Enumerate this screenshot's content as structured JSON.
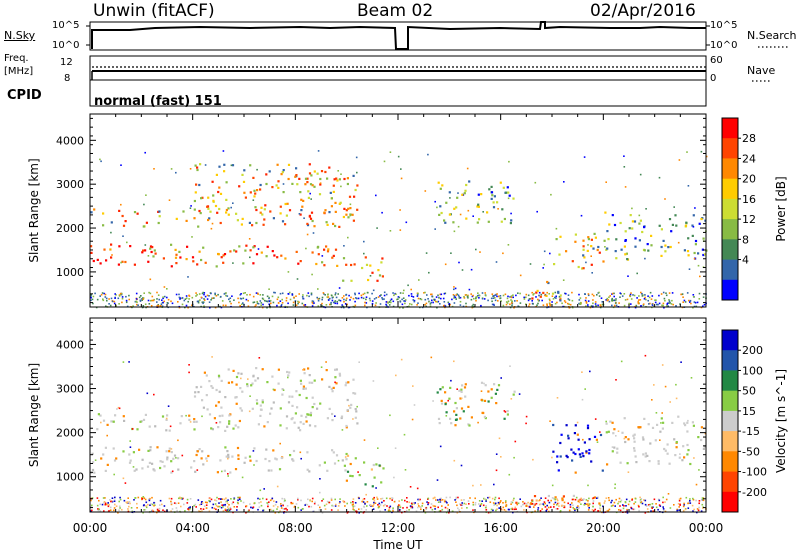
{
  "header": {
    "station": "Unwin (fitACF)",
    "beam": "Beam 02",
    "date": "02/Apr/2016"
  },
  "nsky_panel": {
    "left_label": "N.Sky",
    "left_ticks": [
      "10^5",
      "10^0"
    ],
    "right_ticks": [
      "10^5",
      "10^0"
    ],
    "right_label": "N.Search"
  },
  "freq_panel": {
    "left_label_1": "Freq.",
    "left_label_2": "[MHz]",
    "left_ticks": [
      "12",
      "8"
    ],
    "right_ticks": [
      "60",
      "0"
    ],
    "right_label": "Nave"
  },
  "cpid_panel": {
    "label": "CPID",
    "text": "normal (fast) 151"
  },
  "chart_data": [
    {
      "type": "heatmap",
      "parameter": "Power",
      "ylabel": "Slant Range [km]",
      "xlabel": "Time UT",
      "x_ticks": [
        "00:00",
        "04:00",
        "08:00",
        "12:00",
        "16:00",
        "20:00",
        "00:00"
      ],
      "y_ticks": [
        1000,
        2000,
        3000,
        4000
      ],
      "ylim": [
        200,
        4600
      ],
      "colorbar": {
        "label": "Power [dB]",
        "ticks": [
          "28",
          "24",
          "20",
          "16",
          "12",
          "8",
          "4"
        ],
        "colors": [
          "#ff0000",
          "#ff4400",
          "#ff8800",
          "#ffcc00",
          "#ccdd33",
          "#88bb44",
          "#448855",
          "#3366aa",
          "#0000ff"
        ]
      },
      "echo_regions": [
        {
          "t0": 0.0,
          "t1": 10.0,
          "r0": 1150,
          "r1": 1650,
          "value": "high"
        },
        {
          "t0": 0.0,
          "t1": 10.5,
          "r0": 2050,
          "r1": 2450,
          "value": "mid"
        },
        {
          "t0": 4.0,
          "t1": 10.4,
          "r0": 2400,
          "r1": 3500,
          "value": "mid"
        },
        {
          "t0": 9.8,
          "t1": 11.4,
          "r0": 800,
          "r1": 1400,
          "value": "mid"
        },
        {
          "t0": 13.5,
          "t1": 16.5,
          "r0": 2100,
          "r1": 3100,
          "value": "low"
        },
        {
          "t0": 17.0,
          "t1": 18.5,
          "r0": 300,
          "r1": 800,
          "value": "mid"
        },
        {
          "t0": 18.0,
          "t1": 20.0,
          "r0": 1100,
          "r1": 1900,
          "value": "mid"
        },
        {
          "t0": 20.0,
          "t1": 24.0,
          "r0": 1300,
          "r1": 2400,
          "value": "low"
        }
      ]
    },
    {
      "type": "heatmap",
      "parameter": "Velocity",
      "ylabel": "Slant Range [km]",
      "xlabel": "Time UT",
      "x_ticks": [
        "00:00",
        "04:00",
        "08:00",
        "12:00",
        "16:00",
        "20:00",
        "00:00"
      ],
      "y_ticks": [
        1000,
        2000,
        3000,
        4000
      ],
      "ylim": [
        200,
        4600
      ],
      "colorbar": {
        "label": "Velocity [m s^-1]",
        "ticks": [
          "200",
          "100",
          "50",
          "15",
          "-15",
          "-50",
          "-100",
          "-200"
        ],
        "colors": [
          "#0000cc",
          "#2255aa",
          "#228844",
          "#88cc44",
          "#cccccc",
          "#ffbb66",
          "#ff8800",
          "#ff4400",
          "#ff0000"
        ]
      },
      "echo_regions": [
        {
          "t0": 0.0,
          "t1": 10.0,
          "r0": 1100,
          "r1": 1700,
          "value": "ground"
        },
        {
          "t0": 0.0,
          "t1": 10.5,
          "r0": 2050,
          "r1": 2450,
          "value": "ground"
        },
        {
          "t0": 4.0,
          "t1": 10.4,
          "r0": 2400,
          "r1": 3500,
          "value": "ground"
        },
        {
          "t0": 9.8,
          "t1": 11.4,
          "r0": 800,
          "r1": 1500,
          "value": "mixed_green_orange"
        },
        {
          "t0": 13.5,
          "t1": 16.5,
          "r0": 2100,
          "r1": 3200,
          "value": "green"
        },
        {
          "t0": 16.0,
          "t1": 20.0,
          "r0": 300,
          "r1": 600,
          "value": "orange"
        },
        {
          "t0": 18.0,
          "t1": 20.0,
          "r0": 1100,
          "r1": 2200,
          "value": "blue"
        },
        {
          "t0": 20.0,
          "t1": 24.0,
          "r0": 1300,
          "r1": 2400,
          "value": "ground"
        }
      ]
    }
  ]
}
